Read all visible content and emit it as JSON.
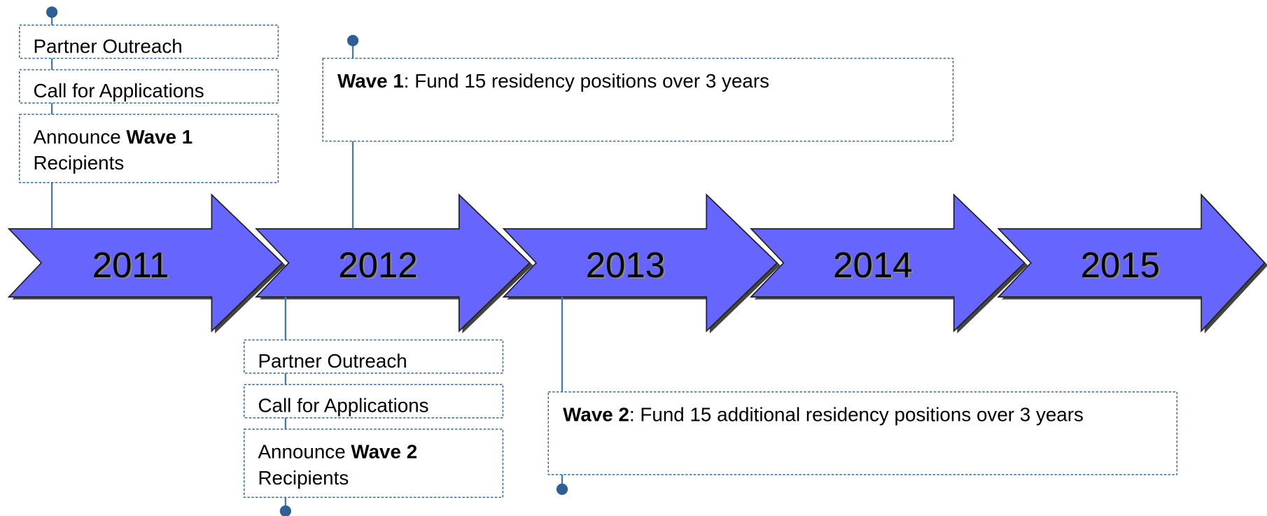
{
  "years": [
    "2011",
    "2012",
    "2013",
    "2014",
    "2015"
  ],
  "phases": [
    {
      "steps": [
        "Partner Outreach",
        "Call for Applications"
      ],
      "announce": {
        "prefix": "Announce",
        "wave": "Wave 1",
        "suffix": "Recipients"
      }
    },
    {
      "steps": [
        "Partner Outreach",
        "Call for Applications"
      ],
      "announce": {
        "prefix": "Announce",
        "wave": "Wave 2",
        "suffix": "Recipients"
      }
    }
  ],
  "waves": [
    {
      "label": "Wave 1",
      "text": ": Fund 15 residency positions over 3 years"
    },
    {
      "label": "Wave 2",
      "text": ": Fund 15 additional residency positions over 3 years"
    }
  ]
}
